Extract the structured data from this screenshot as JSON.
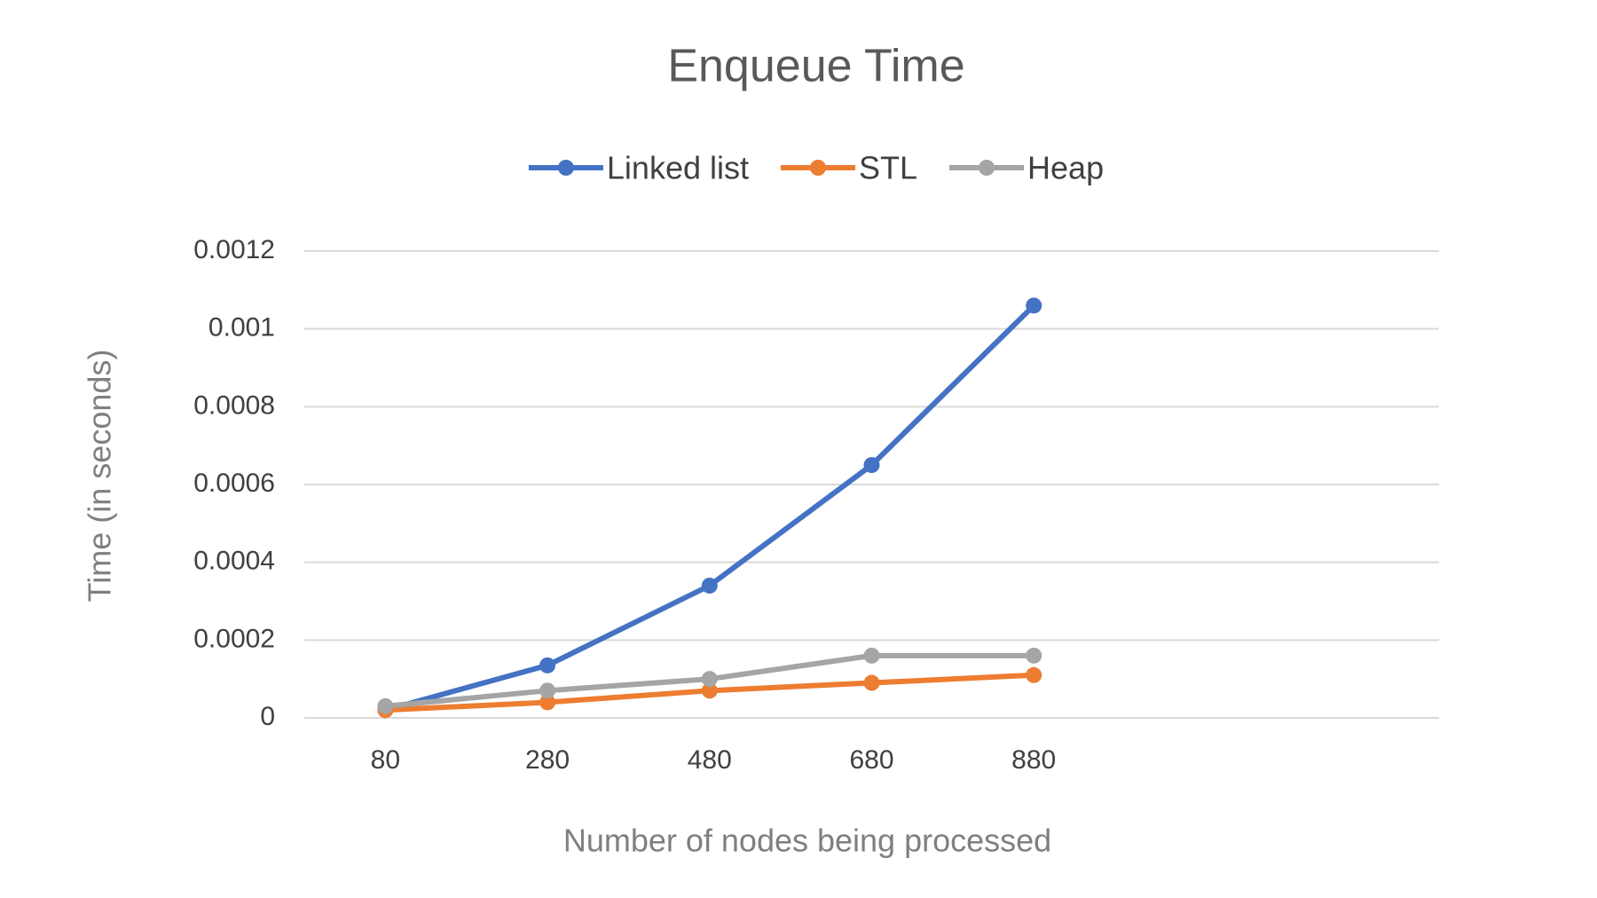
{
  "chart_data": {
    "type": "line",
    "title": "Enqueue Time",
    "x_label": "Number of nodes being processed",
    "y_label": "Time (in seconds)",
    "categories": [
      "80",
      "280",
      "480",
      "680",
      "880",
      null,
      null
    ],
    "series": [
      {
        "name": "Linked list",
        "color": "#4472c4",
        "values": [
          2e-05,
          0.000135,
          0.00034,
          0.00065,
          0.00106,
          null,
          null
        ]
      },
      {
        "name": "STL",
        "color": "#ed7d31",
        "values": [
          2e-05,
          4e-05,
          7e-05,
          9e-05,
          0.00011,
          null,
          null
        ]
      },
      {
        "name": "Heap",
        "color": "#a5a5a5",
        "values": [
          3e-05,
          7e-05,
          0.0001,
          0.00016,
          0.00016,
          null,
          null
        ]
      }
    ],
    "ylim": [
      0,
      0.0012
    ],
    "yticks": [
      0,
      0.0002,
      0.0004,
      0.0006,
      0.0008,
      0.001,
      0.0012
    ],
    "grid": true,
    "legend": "top"
  }
}
